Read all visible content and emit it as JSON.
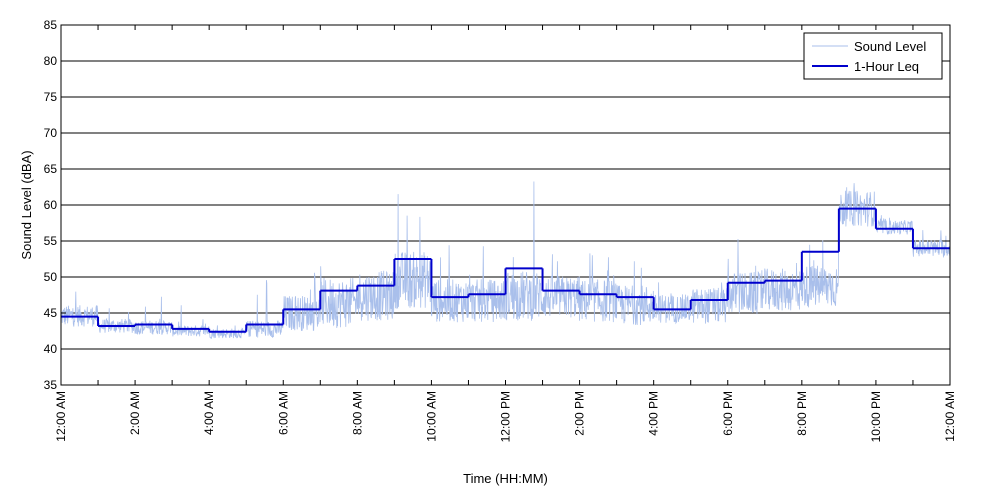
{
  "chart_data": {
    "type": "line",
    "xlabel": "Time (HH:MM)",
    "ylabel": "Sound Level (dBA)",
    "xlim": [
      0,
      24
    ],
    "ylim": [
      35,
      85
    ],
    "y_ticks": [
      35,
      40,
      45,
      50,
      55,
      60,
      65,
      70,
      75,
      80,
      85
    ],
    "x_ticks": [
      0,
      1,
      2,
      3,
      4,
      5,
      6,
      7,
      8,
      9,
      10,
      11,
      12,
      13,
      14,
      15,
      16,
      17,
      18,
      19,
      20,
      21,
      22,
      23,
      24
    ],
    "x_tick_labels": [
      {
        "x": 0,
        "label": "12:00 AM"
      },
      {
        "x": 2,
        "label": "2:00 AM"
      },
      {
        "x": 4,
        "label": "4:00 AM"
      },
      {
        "x": 6,
        "label": "6:00 AM"
      },
      {
        "x": 8,
        "label": "8:00 AM"
      },
      {
        "x": 10,
        "label": "10:00 AM"
      },
      {
        "x": 12,
        "label": "12:00 PM"
      },
      {
        "x": 14,
        "label": "2:00 PM"
      },
      {
        "x": 16,
        "label": "4:00 PM"
      },
      {
        "x": 18,
        "label": "6:00 PM"
      },
      {
        "x": 20,
        "label": "8:00 PM"
      },
      {
        "x": 22,
        "label": "10:00 PM"
      },
      {
        "x": 24,
        "label": "12:00 AM"
      }
    ],
    "grid": "horizontal",
    "legend_position": "top-right",
    "series": [
      {
        "name": "Sound Level",
        "color": "#a9bfeb",
        "style": "thin-line",
        "hourly_profile": [
          {
            "hour": 0,
            "base": 44.0,
            "spread": 1.5,
            "spike": 5
          },
          {
            "hour": 1,
            "base": 42.8,
            "spread": 1.0,
            "spike": 3
          },
          {
            "hour": 2,
            "base": 42.6,
            "spread": 1.0,
            "spike": 5
          },
          {
            "hour": 3,
            "base": 42.2,
            "spread": 0.8,
            "spike": 3
          },
          {
            "hour": 4,
            "base": 41.9,
            "spread": 0.7,
            "spike": 2
          },
          {
            "hour": 5,
            "base": 42.3,
            "spread": 1.2,
            "spike": 8
          },
          {
            "hour": 6,
            "base": 44.0,
            "spread": 2.5,
            "spike": 7
          },
          {
            "hour": 7,
            "base": 45.0,
            "spread": 3.5,
            "spike": 10
          },
          {
            "hour": 8,
            "base": 46.0,
            "spread": 3.5,
            "spike": 9
          },
          {
            "hour": 9,
            "base": 48.0,
            "spread": 4.0,
            "spike": 15
          },
          {
            "hour": 10,
            "base": 45.5,
            "spread": 3.0,
            "spike": 8
          },
          {
            "hour": 11,
            "base": 45.5,
            "spread": 3.0,
            "spike": 14
          },
          {
            "hour": 12,
            "base": 46.0,
            "spread": 3.5,
            "spike": 17
          },
          {
            "hour": 13,
            "base": 46.0,
            "spread": 3.0,
            "spike": 6
          },
          {
            "hour": 14,
            "base": 45.5,
            "spread": 3.0,
            "spike": 6
          },
          {
            "hour": 15,
            "base": 45.0,
            "spread": 2.8,
            "spike": 6
          },
          {
            "hour": 16,
            "base": 44.8,
            "spread": 2.0,
            "spike": 4
          },
          {
            "hour": 17,
            "base": 45.0,
            "spread": 2.5,
            "spike": 6
          },
          {
            "hour": 18,
            "base": 46.5,
            "spread": 3.0,
            "spike": 9
          },
          {
            "hour": 19,
            "base": 47.0,
            "spread": 3.0,
            "spike": 9
          },
          {
            "hour": 20,
            "base": 47.5,
            "spread": 3.0,
            "spike": 6
          },
          {
            "hour": 21,
            "base": 58.5,
            "spread": 2.5,
            "spike": 4
          },
          {
            "hour": 22,
            "base": 56.5,
            "spread": 1.0,
            "spike": 2
          },
          {
            "hour": 23,
            "base": 53.5,
            "spread": 1.2,
            "spike": 3
          }
        ]
      },
      {
        "name": "1-Hour Leq",
        "color": "#0000cc",
        "style": "step",
        "values": [
          44.5,
          43.2,
          43.4,
          42.8,
          42.4,
          43.4,
          45.5,
          48.1,
          48.8,
          52.5,
          47.2,
          47.6,
          51.2,
          48.1,
          47.6,
          47.2,
          45.5,
          46.8,
          49.2,
          49.5,
          53.5,
          59.5,
          56.7,
          54.0
        ]
      }
    ]
  }
}
